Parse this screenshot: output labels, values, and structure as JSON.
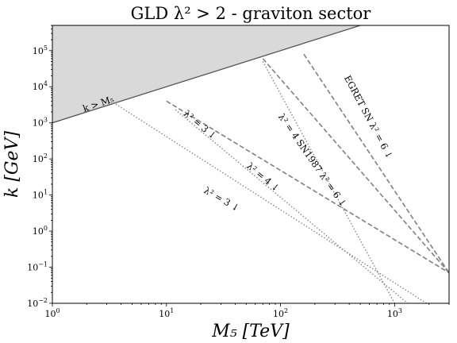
{
  "chart_data": {
    "type": "line",
    "title": "GLD λ² > 2 - graviton sector",
    "xlabel": "M₅ [TeV]",
    "ylabel": "k [GeV]",
    "xscale": "log",
    "yscale": "log",
    "xlim": [
      1,
      3000
    ],
    "ylim": [
      0.01,
      500000
    ],
    "x_ticks": [
      {
        "v": 1,
        "b": "10",
        "e": "0"
      },
      {
        "v": 10,
        "b": "10",
        "e": "1"
      },
      {
        "v": 100,
        "b": "10",
        "e": "2"
      },
      {
        "v": 1000,
        "b": "10",
        "e": "3"
      }
    ],
    "y_ticks": [
      {
        "v": 0.01,
        "b": "10",
        "e": "−2"
      },
      {
        "v": 0.1,
        "b": "10",
        "e": "−1"
      },
      {
        "v": 1,
        "b": "10",
        "e": "0"
      },
      {
        "v": 10,
        "b": "10",
        "e": "1"
      },
      {
        "v": 100,
        "b": "10",
        "e": "2"
      },
      {
        "v": 1000,
        "b": "10",
        "e": "3"
      },
      {
        "v": 10000,
        "b": "10",
        "e": "4"
      },
      {
        "v": 100000,
        "b": "10",
        "e": "5"
      }
    ],
    "excluded_region": {
      "label": "k > M₅",
      "boundary": [
        [
          1,
          1000
        ],
        [
          500,
          500000
        ]
      ],
      "color": "#d9d9d9"
    },
    "series": [
      {
        "style": "dotted",
        "color": "#808080",
        "points": [
          [
            12,
            2300
          ],
          [
            1300,
            0.01
          ]
        ]
      },
      {
        "style": "dotted",
        "color": "#808080",
        "points": [
          [
            3.6,
            3300
          ],
          [
            1900,
            0.01
          ]
        ]
      },
      {
        "style": "dotted",
        "color": "#808080",
        "points": [
          [
            70,
            50000
          ],
          [
            1000,
            0.01
          ]
        ]
      },
      {
        "style": "dashed",
        "color": "#808080",
        "points": [
          [
            10,
            4000
          ],
          [
            3000,
            0.07
          ]
        ]
      },
      {
        "style": "dashed",
        "color": "#808080",
        "points": [
          [
            70,
            60000
          ],
          [
            3000,
            0.07
          ]
        ]
      },
      {
        "style": "dashed",
        "color": "#808080",
        "points": [
          [
            160,
            80000
          ],
          [
            3000,
            0.07
          ]
        ]
      }
    ],
    "annotations": [
      {
        "text": "k > M₅",
        "x": 1.9,
        "y": 2000,
        "angle": -19
      },
      {
        "text": "λ² = 3 ↓",
        "x": 14,
        "y": 1700,
        "angle": 40
      },
      {
        "text": "λ² = 4 ↓",
        "x": 50,
        "y": 60,
        "angle": 40
      },
      {
        "text": "λ² = 3 ↓",
        "x": 21,
        "y": 12,
        "angle": 30
      },
      {
        "text": "λ² = 4 SN1987 λ² = 6 ↓",
        "x": 95,
        "y": 1500,
        "angle": 55
      },
      {
        "text": "EGRET SN λ² = 6 ↓",
        "x": 360,
        "y": 18000,
        "angle": 62
      }
    ],
    "grid": false,
    "legend": "none"
  }
}
